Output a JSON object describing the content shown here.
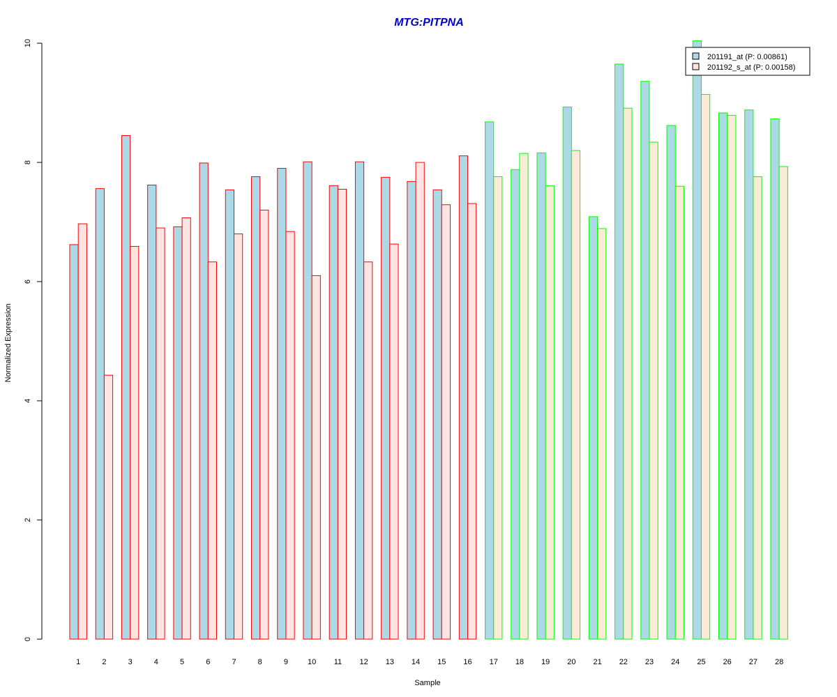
{
  "chart_data": {
    "type": "bar",
    "title": "MTG:PITPNA",
    "xlabel": "Sample",
    "ylabel": "Normalized Expression",
    "ylim": [
      0,
      10
    ],
    "yticks": [
      0,
      2,
      4,
      6,
      8,
      10
    ],
    "categories": [
      "1",
      "2",
      "3",
      "4",
      "5",
      "6",
      "7",
      "8",
      "9",
      "10",
      "11",
      "12",
      "13",
      "14",
      "15",
      "16",
      "17",
      "18",
      "19",
      "20",
      "21",
      "22",
      "23",
      "24",
      "25",
      "26",
      "27",
      "28"
    ],
    "series": [
      {
        "name": "201191_at (P: 0.00861)",
        "fill": "#add8e6",
        "values": [
          6.62,
          7.56,
          8.45,
          7.62,
          6.92,
          7.99,
          7.54,
          7.76,
          7.9,
          8.01,
          7.61,
          8.01,
          7.75,
          7.68,
          7.54,
          8.11,
          8.68,
          7.88,
          8.16,
          8.93,
          7.09,
          9.65,
          9.36,
          8.62,
          10.04,
          8.83,
          8.88,
          8.73
        ]
      },
      {
        "name": "201192_s_at (P: 0.00158)",
        "fill_group1": "#ffe4e1",
        "fill_group2": "#faebd7",
        "values": [
          6.97,
          4.43,
          6.59,
          6.9,
          7.07,
          6.33,
          6.8,
          7.2,
          6.84,
          6.1,
          7.55,
          6.33,
          6.63,
          8.0,
          7.29,
          7.31,
          7.76,
          8.15,
          7.61,
          8.2,
          6.89,
          8.91,
          8.34,
          7.6,
          9.14,
          8.79,
          7.76,
          7.93
        ]
      }
    ],
    "groups": [
      {
        "samples": [
          1,
          16
        ],
        "border_color": "#ff0000"
      },
      {
        "samples": [
          17,
          28
        ],
        "border_color": "#00ff00"
      }
    ],
    "legend_placement": "top-right",
    "title_color": "#0000cc",
    "grid": false
  }
}
